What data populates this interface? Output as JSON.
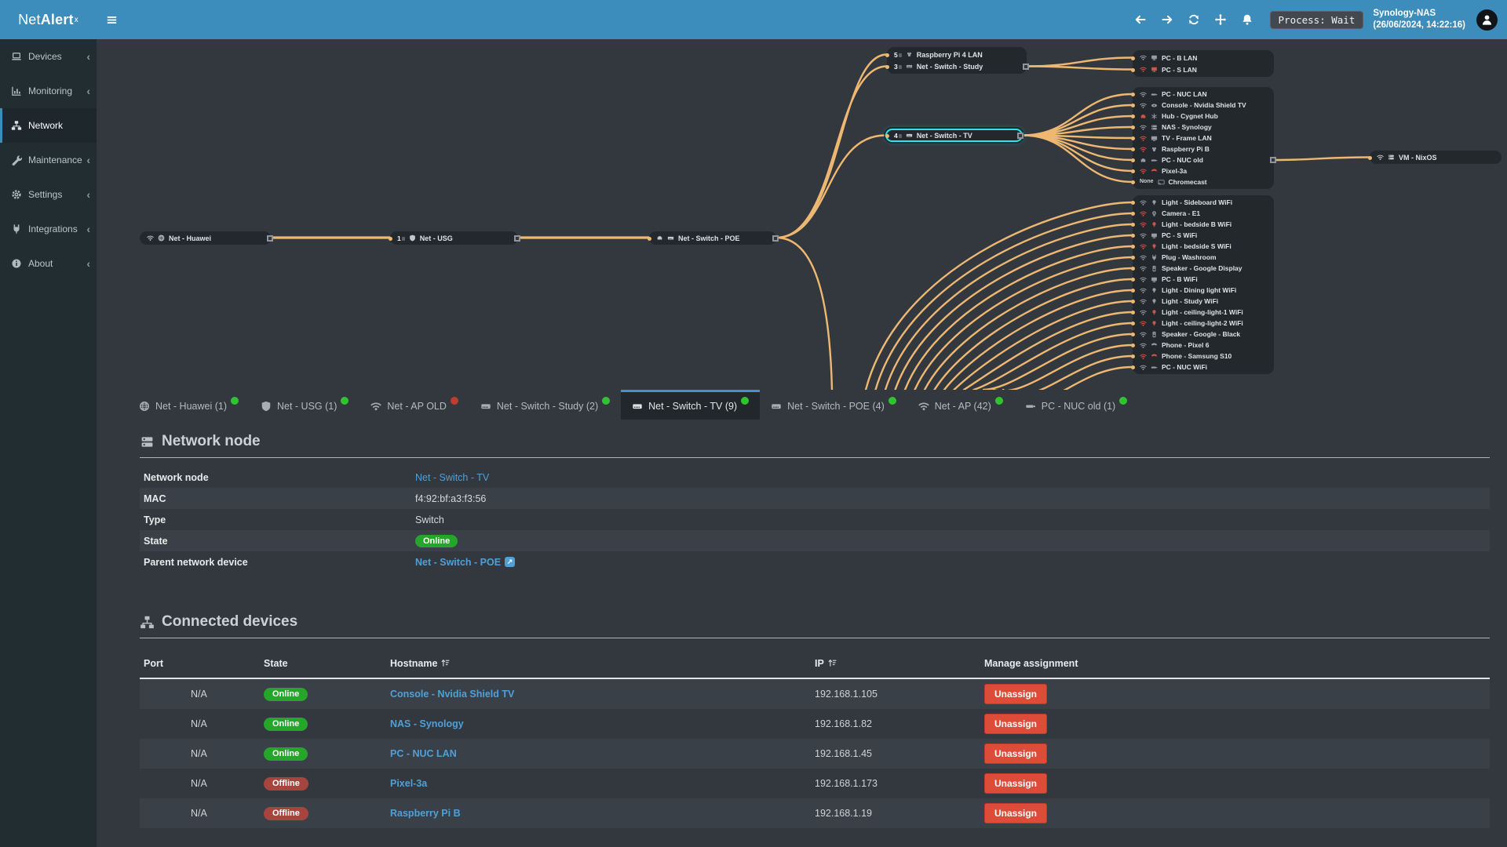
{
  "colors": {
    "header_blue": "#3c8dbc",
    "sidebar_bg": "#222d32",
    "page_bg": "#32383e",
    "edge_orange": "#eeb873",
    "selected_cyan": "#2ce4ea",
    "link_blue": "#4fa0d8",
    "online_green": "#25a52a",
    "offline_red": "#a8443e",
    "danger_red": "#dd4b39",
    "tab_dot_green": "#2fc32f",
    "tab_dot_red": "#c23b2e"
  },
  "header": {
    "logo_prefix": "Net",
    "logo_bold": "Alert",
    "logo_sup": "x",
    "icons": [
      "menu-icon",
      "arrow-left-icon",
      "arrow-right-icon",
      "refresh-icon",
      "move-icon",
      "bell-icon"
    ],
    "process_badge": "Process: Wait",
    "host_name": "Synology-NAS",
    "host_time": "(26/06/2024, 14:22:16)"
  },
  "sidebar": {
    "items": [
      {
        "icon": "laptop",
        "label": "Devices",
        "chevron": "‹"
      },
      {
        "icon": "chart",
        "label": "Monitoring",
        "chevron": "‹"
      },
      {
        "icon": "sitemap",
        "label": "Network",
        "state": "active"
      },
      {
        "icon": "wrench",
        "label": "Maintenance",
        "chevron": "‹"
      },
      {
        "icon": "gear",
        "label": "Settings",
        "chevron": "‹"
      },
      {
        "icon": "plug",
        "label": "Integrations",
        "chevron": "‹"
      },
      {
        "icon": "info",
        "label": "About",
        "chevron": "‹"
      }
    ]
  },
  "topology": {
    "huawei": {
      "label": "Net - Huawei",
      "icons": [
        "wifi",
        "globe"
      ]
    },
    "usg": {
      "count": "1",
      "icon": "shield",
      "label": "Net - USG"
    },
    "poe": {
      "label": "Net - Switch - POE",
      "icons": [
        "eth",
        "switch"
      ]
    },
    "study_rows": [
      {
        "count": "5",
        "type": "raspberry",
        "type_color": "gray",
        "label": "Raspberry Pi 4 LAN"
      },
      {
        "count": "3",
        "type": "switch",
        "type_color": "gray",
        "label": "Net - Switch - Study",
        "marker": "show"
      }
    ],
    "tv": {
      "count": "4",
      "icon": "switch",
      "label": "Net - Switch - TV"
    },
    "lan_top": [
      {
        "conn": "wifi",
        "conn_color": "gray",
        "type": "monitor",
        "type_color": "gray",
        "label": "PC - B LAN"
      },
      {
        "conn": "wifi",
        "conn_color": "red",
        "type": "monitor",
        "type_color": "red",
        "label": "PC - S LAN"
      }
    ],
    "tv_cluster": [
      {
        "conn": "wifi",
        "conn_color": "gray",
        "type": "usb",
        "type_color": "gray",
        "label": "PC - NUC LAN"
      },
      {
        "conn": "wifi",
        "conn_color": "gray",
        "type": "console",
        "type_color": "gray",
        "label": "Console - Nvidia Shield TV"
      },
      {
        "conn": "eth",
        "conn_color": "red",
        "type": "hub",
        "type_color": "gray",
        "label": "Hub - Cygnet Hub"
      },
      {
        "conn": "wifi",
        "conn_color": "gray",
        "type": "server",
        "type_color": "gray",
        "label": "NAS - Synology"
      },
      {
        "conn": "wifi",
        "conn_color": "red",
        "type": "tv",
        "type_color": "gray",
        "label": "TV - Frame LAN"
      },
      {
        "conn": "wifi",
        "conn_color": "red",
        "type": "raspberry",
        "type_color": "gray",
        "label": "Raspberry Pi B"
      },
      {
        "conn": "eth",
        "conn_color": "gray",
        "type": "usb",
        "type_color": "gray",
        "label": "PC - NUC old",
        "marker": "show"
      },
      {
        "conn": "wifi",
        "conn_color": "red",
        "type": "phone",
        "type_color": "red",
        "label": "Pixel-3a"
      },
      {
        "conn": "none",
        "conn_label": "None",
        "conn_color": "gray",
        "type": "cast",
        "type_color": "gray",
        "label": "Chromecast"
      }
    ],
    "wifi_cluster": [
      {
        "conn": "wifi",
        "conn_color": "gray",
        "type": "bulb",
        "type_color": "gray",
        "label": "Light - Sideboard WiFi"
      },
      {
        "conn": "wifi",
        "conn_color": "red",
        "type": "camera",
        "type_color": "gray",
        "label": "Camera - E1"
      },
      {
        "conn": "wifi",
        "conn_color": "red",
        "type": "bulb",
        "type_color": "red",
        "label": "Light - bedside B WiFi"
      },
      {
        "conn": "wifi",
        "conn_color": "gray",
        "type": "monitor",
        "type_color": "gray",
        "label": "PC - S WiFi"
      },
      {
        "conn": "wifi",
        "conn_color": "red",
        "type": "bulb",
        "type_color": "red",
        "label": "Light - bedside S WiFi"
      },
      {
        "conn": "wifi",
        "conn_color": "gray",
        "type": "plug",
        "type_color": "gray",
        "label": "Plug - Washroom"
      },
      {
        "conn": "wifi",
        "conn_color": "gray",
        "type": "speaker",
        "type_color": "gray",
        "label": "Speaker - Google Display"
      },
      {
        "conn": "wifi",
        "conn_color": "gray",
        "type": "monitor",
        "type_color": "gray",
        "label": "PC - B WiFi"
      },
      {
        "conn": "wifi",
        "conn_color": "gray",
        "type": "bulb",
        "type_color": "gray",
        "label": "Light - Dining light WiFi"
      },
      {
        "conn": "wifi",
        "conn_color": "gray",
        "type": "bulb",
        "type_color": "gray",
        "label": "Light - Study WiFi"
      },
      {
        "conn": "wifi",
        "conn_color": "gray",
        "type": "bulb",
        "type_color": "red",
        "label": "Light - ceiling-light-1 WiFi"
      },
      {
        "conn": "wifi",
        "conn_color": "red",
        "type": "bulb",
        "type_color": "red",
        "label": "Light - ceiling-light-2 WiFi"
      },
      {
        "conn": "wifi",
        "conn_color": "gray",
        "type": "speaker",
        "type_color": "gray",
        "label": "Speaker - Google - Black"
      },
      {
        "conn": "wifi",
        "conn_color": "gray",
        "type": "phone",
        "type_color": "gray",
        "label": "Phone - Pixel 6"
      },
      {
        "conn": "wifi",
        "conn_color": "red",
        "type": "phone",
        "type_color": "red",
        "label": "Phone - Samsung S10"
      },
      {
        "conn": "wifi",
        "conn_color": "gray",
        "type": "usb",
        "type_color": "gray",
        "label": "PC - NUC WiFi"
      }
    ],
    "vm": {
      "label": "VM - NixOS",
      "icons": [
        "wifi",
        "server"
      ]
    }
  },
  "tabs": {
    "items": [
      {
        "icon": "globe",
        "label": "Net - Huawei (1)",
        "dot": "green"
      },
      {
        "icon": "shield",
        "label": "Net - USG (1)",
        "dot": "green"
      },
      {
        "icon": "wifi",
        "label": "Net - AP OLD",
        "dot": "red"
      },
      {
        "icon": "switch",
        "label": "Net - Switch - Study (2)",
        "dot": "green"
      },
      {
        "icon": "switch",
        "label": "Net - Switch - TV (9)",
        "dot": "green",
        "state": "active"
      },
      {
        "icon": "switch",
        "label": "Net - Switch - POE (4)",
        "dot": "green"
      },
      {
        "icon": "wifi",
        "label": "Net - AP (42)",
        "dot": "green"
      },
      {
        "icon": "usb",
        "label": "PC - NUC old (1)",
        "dot": "green"
      }
    ]
  },
  "node_details": {
    "title": "Network node",
    "rows": [
      {
        "label": "Network node",
        "value": "Net - Switch - TV",
        "type": "link"
      },
      {
        "label": "MAC",
        "value": "f4:92:bf:a3:f3:56",
        "type": "plain"
      },
      {
        "label": "Type",
        "value": "Switch",
        "type": "plain"
      },
      {
        "label": "State",
        "value": "Online",
        "type": "badge-green"
      },
      {
        "label": "Parent network device",
        "value": "Net - Switch - POE",
        "type": "link-bold",
        "ext": "show"
      }
    ]
  },
  "connected": {
    "title": "Connected devices",
    "columns": {
      "port": "Port",
      "state": "State",
      "hostname": "Hostname",
      "ip": "IP",
      "manage": "Manage assignment"
    },
    "rows": [
      {
        "port": "N/A",
        "state": "Online",
        "state_class": "online",
        "hostname": "Console - Nvidia Shield TV",
        "ip": "192.168.1.105",
        "action": "Unassign"
      },
      {
        "port": "N/A",
        "state": "Online",
        "state_class": "online",
        "hostname": "NAS - Synology",
        "ip": "192.168.1.82",
        "action": "Unassign"
      },
      {
        "port": "N/A",
        "state": "Online",
        "state_class": "online",
        "hostname": "PC - NUC LAN",
        "ip": "192.168.1.45",
        "action": "Unassign"
      },
      {
        "port": "N/A",
        "state": "Offline",
        "state_class": "offline",
        "hostname": "Pixel-3a",
        "ip": "192.168.1.173",
        "action": "Unassign"
      },
      {
        "port": "N/A",
        "state": "Offline",
        "state_class": "offline",
        "hostname": "Raspberry Pi B",
        "ip": "192.168.1.19",
        "action": "Unassign"
      }
    ]
  }
}
